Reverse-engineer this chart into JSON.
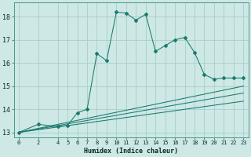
{
  "xlabel": "Humidex (Indice chaleur)",
  "background_color": "#cde8e5",
  "grid_color": "#a8ceca",
  "line_color": "#1a7a6e",
  "xlim": [
    -0.5,
    23.5
  ],
  "ylim": [
    12.8,
    18.6
  ],
  "yticks": [
    13,
    14,
    15,
    16,
    17,
    18
  ],
  "xticks": [
    0,
    2,
    4,
    5,
    6,
    7,
    8,
    9,
    10,
    11,
    12,
    13,
    14,
    15,
    16,
    17,
    18,
    19,
    20,
    21,
    22,
    23
  ],
  "series1_x": [
    0,
    2,
    4,
    5,
    6,
    7,
    8,
    9,
    10,
    11,
    12,
    13,
    14,
    15,
    16,
    17,
    18,
    19,
    20,
    21,
    22,
    23
  ],
  "series1_y": [
    13.0,
    13.35,
    13.25,
    13.3,
    13.85,
    14.0,
    16.4,
    16.1,
    18.2,
    18.15,
    17.85,
    18.1,
    16.5,
    16.75,
    17.0,
    17.1,
    16.45,
    15.5,
    15.3,
    15.35,
    15.35,
    15.35
  ],
  "fan_lines": [
    {
      "x": [
        0,
        23
      ],
      "y": [
        13.0,
        15.0
      ]
    },
    {
      "x": [
        0,
        23
      ],
      "y": [
        13.0,
        14.7
      ]
    },
    {
      "x": [
        0,
        23
      ],
      "y": [
        13.0,
        14.35
      ]
    }
  ]
}
